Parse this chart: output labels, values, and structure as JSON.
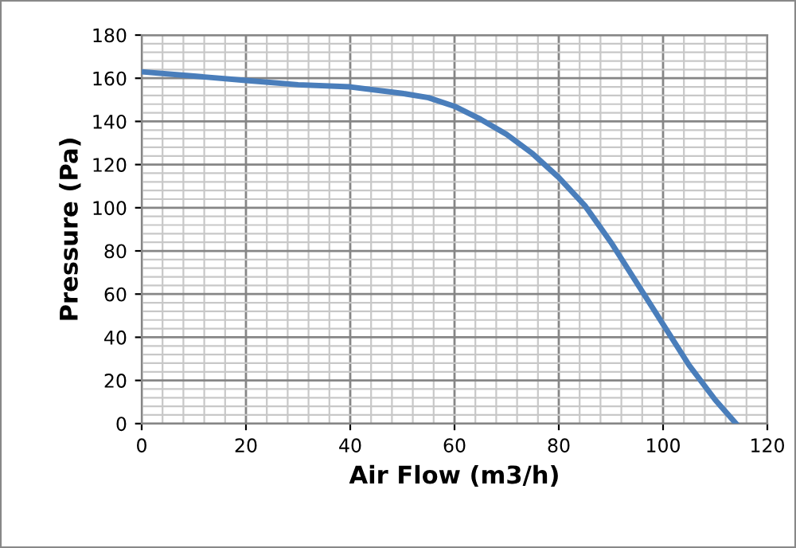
{
  "chart_data": {
    "type": "line",
    "xlabel": "Air Flow (m3/h)",
    "ylabel": "Pressure (Pa)",
    "x": [
      0,
      10,
      20,
      30,
      40,
      50,
      55,
      60,
      65,
      70,
      75,
      80,
      85,
      90,
      95,
      100,
      105,
      110,
      114
    ],
    "series": [
      {
        "color": "#4a7ebb",
        "values": [
          163,
          161,
          159,
          157,
          156,
          153,
          151,
          147,
          141,
          134,
          125,
          114,
          101,
          84,
          65,
          46,
          27,
          11,
          0
        ]
      }
    ],
    "xlim": [
      0,
      120
    ],
    "xticks": [
      0,
      20,
      40,
      60,
      80,
      100,
      120
    ],
    "ylim": [
      0,
      180
    ],
    "yticks": [
      0,
      20,
      40,
      60,
      80,
      100,
      120,
      140,
      160,
      180
    ],
    "grid": true,
    "marker": "none",
    "line_style": "solid"
  }
}
